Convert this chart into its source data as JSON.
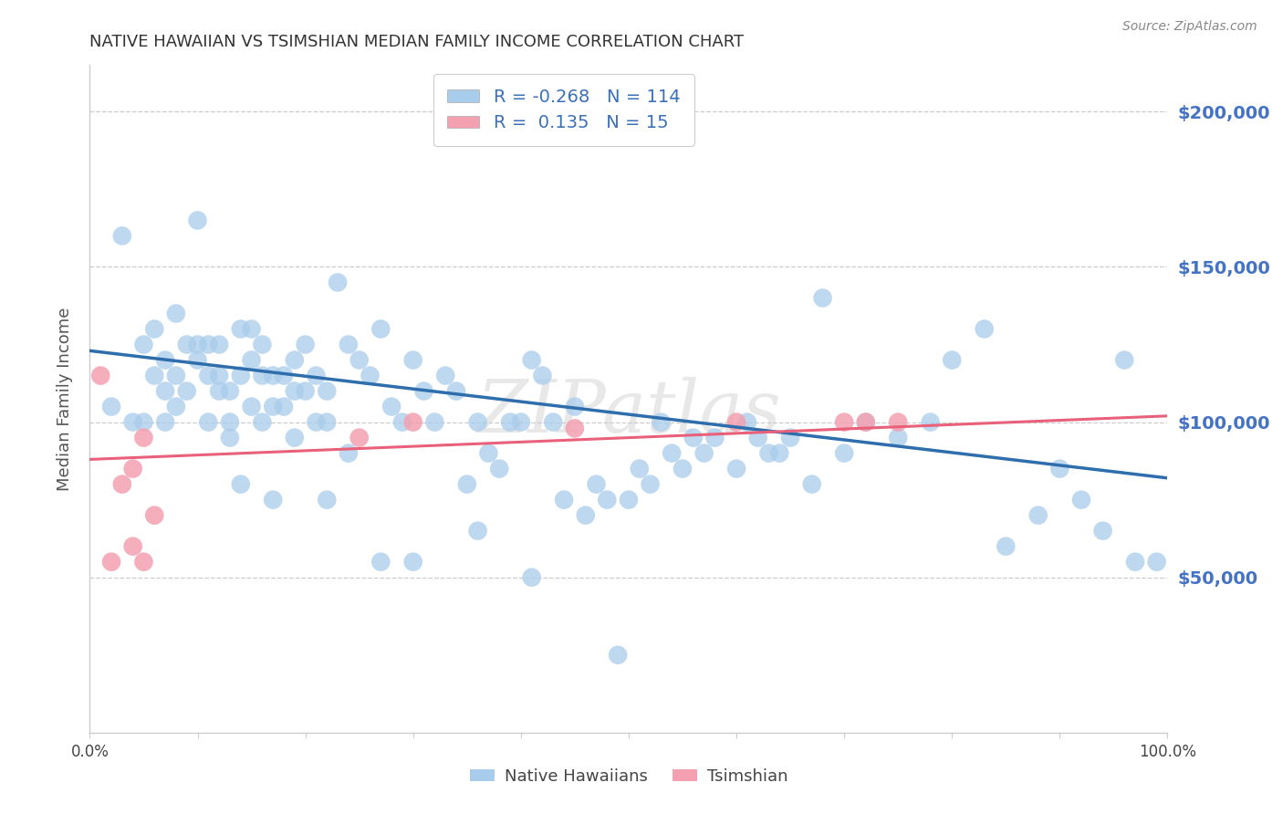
{
  "title": "NATIVE HAWAIIAN VS TSIMSHIAN MEDIAN FAMILY INCOME CORRELATION CHART",
  "source": "Source: ZipAtlas.com",
  "ylabel": "Median Family Income",
  "ytick_labels": [
    "$50,000",
    "$100,000",
    "$150,000",
    "$200,000"
  ],
  "ytick_values": [
    50000,
    100000,
    150000,
    200000
  ],
  "ylim": [
    0,
    215000
  ],
  "xlim": [
    0.0,
    1.0
  ],
  "blue_color": "#A8CCEB",
  "pink_color": "#F4A0B0",
  "blue_line_color": "#2E6EAD",
  "pink_line_color": "#E8607A",
  "legend_text_color": "#3A70B8",
  "blue_R": -0.268,
  "blue_N": 114,
  "pink_R": 0.135,
  "pink_N": 15,
  "background_color": "#FFFFFF",
  "grid_color": "#CCCCCC",
  "title_color": "#333333",
  "axis_label_color": "#555555",
  "right_tick_color": "#4472C4",
  "blue_scatter_x": [
    0.02,
    0.03,
    0.04,
    0.05,
    0.05,
    0.06,
    0.06,
    0.07,
    0.07,
    0.07,
    0.08,
    0.08,
    0.08,
    0.09,
    0.09,
    0.1,
    0.1,
    0.1,
    0.11,
    0.11,
    0.11,
    0.12,
    0.12,
    0.12,
    0.13,
    0.13,
    0.13,
    0.14,
    0.14,
    0.15,
    0.15,
    0.15,
    0.16,
    0.16,
    0.16,
    0.17,
    0.17,
    0.18,
    0.18,
    0.19,
    0.19,
    0.2,
    0.2,
    0.21,
    0.21,
    0.22,
    0.22,
    0.23,
    0.24,
    0.25,
    0.26,
    0.27,
    0.28,
    0.29,
    0.3,
    0.31,
    0.32,
    0.33,
    0.34,
    0.35,
    0.36,
    0.37,
    0.38,
    0.39,
    0.4,
    0.41,
    0.42,
    0.43,
    0.44,
    0.45,
    0.46,
    0.47,
    0.48,
    0.5,
    0.51,
    0.52,
    0.53,
    0.54,
    0.55,
    0.56,
    0.57,
    0.58,
    0.6,
    0.61,
    0.62,
    0.63,
    0.64,
    0.65,
    0.67,
    0.68,
    0.7,
    0.72,
    0.75,
    0.78,
    0.8,
    0.83,
    0.85,
    0.88,
    0.9,
    0.92,
    0.94,
    0.96,
    0.97,
    0.99,
    0.14,
    0.17,
    0.19,
    0.22,
    0.24,
    0.27,
    0.3,
    0.36,
    0.41,
    0.49
  ],
  "blue_scatter_y": [
    105000,
    160000,
    100000,
    125000,
    100000,
    130000,
    115000,
    120000,
    110000,
    100000,
    135000,
    115000,
    105000,
    125000,
    110000,
    125000,
    165000,
    120000,
    125000,
    115000,
    100000,
    125000,
    115000,
    110000,
    110000,
    100000,
    95000,
    130000,
    115000,
    130000,
    120000,
    105000,
    125000,
    115000,
    100000,
    115000,
    105000,
    115000,
    105000,
    120000,
    110000,
    125000,
    110000,
    100000,
    115000,
    110000,
    100000,
    145000,
    125000,
    120000,
    115000,
    130000,
    105000,
    100000,
    120000,
    110000,
    100000,
    115000,
    110000,
    80000,
    100000,
    90000,
    85000,
    100000,
    100000,
    120000,
    115000,
    100000,
    75000,
    105000,
    70000,
    80000,
    75000,
    75000,
    85000,
    80000,
    100000,
    90000,
    85000,
    95000,
    90000,
    95000,
    85000,
    100000,
    95000,
    90000,
    90000,
    95000,
    80000,
    140000,
    90000,
    100000,
    95000,
    100000,
    120000,
    130000,
    60000,
    70000,
    85000,
    75000,
    65000,
    120000,
    55000,
    55000,
    80000,
    75000,
    95000,
    75000,
    90000,
    55000,
    55000,
    65000,
    50000,
    25000
  ],
  "pink_scatter_x": [
    0.01,
    0.02,
    0.03,
    0.04,
    0.04,
    0.05,
    0.05,
    0.06,
    0.25,
    0.3,
    0.45,
    0.6,
    0.7,
    0.72,
    0.75
  ],
  "pink_scatter_y": [
    115000,
    55000,
    80000,
    60000,
    85000,
    55000,
    95000,
    70000,
    95000,
    100000,
    98000,
    100000,
    100000,
    100000,
    100000
  ],
  "blue_trend_x0": 0.0,
  "blue_trend_y0": 123000,
  "blue_trend_x1": 1.0,
  "blue_trend_y1": 82000,
  "pink_trend_x0": 0.0,
  "pink_trend_y0": 88000,
  "pink_trend_x1": 1.0,
  "pink_trend_y1": 102000
}
